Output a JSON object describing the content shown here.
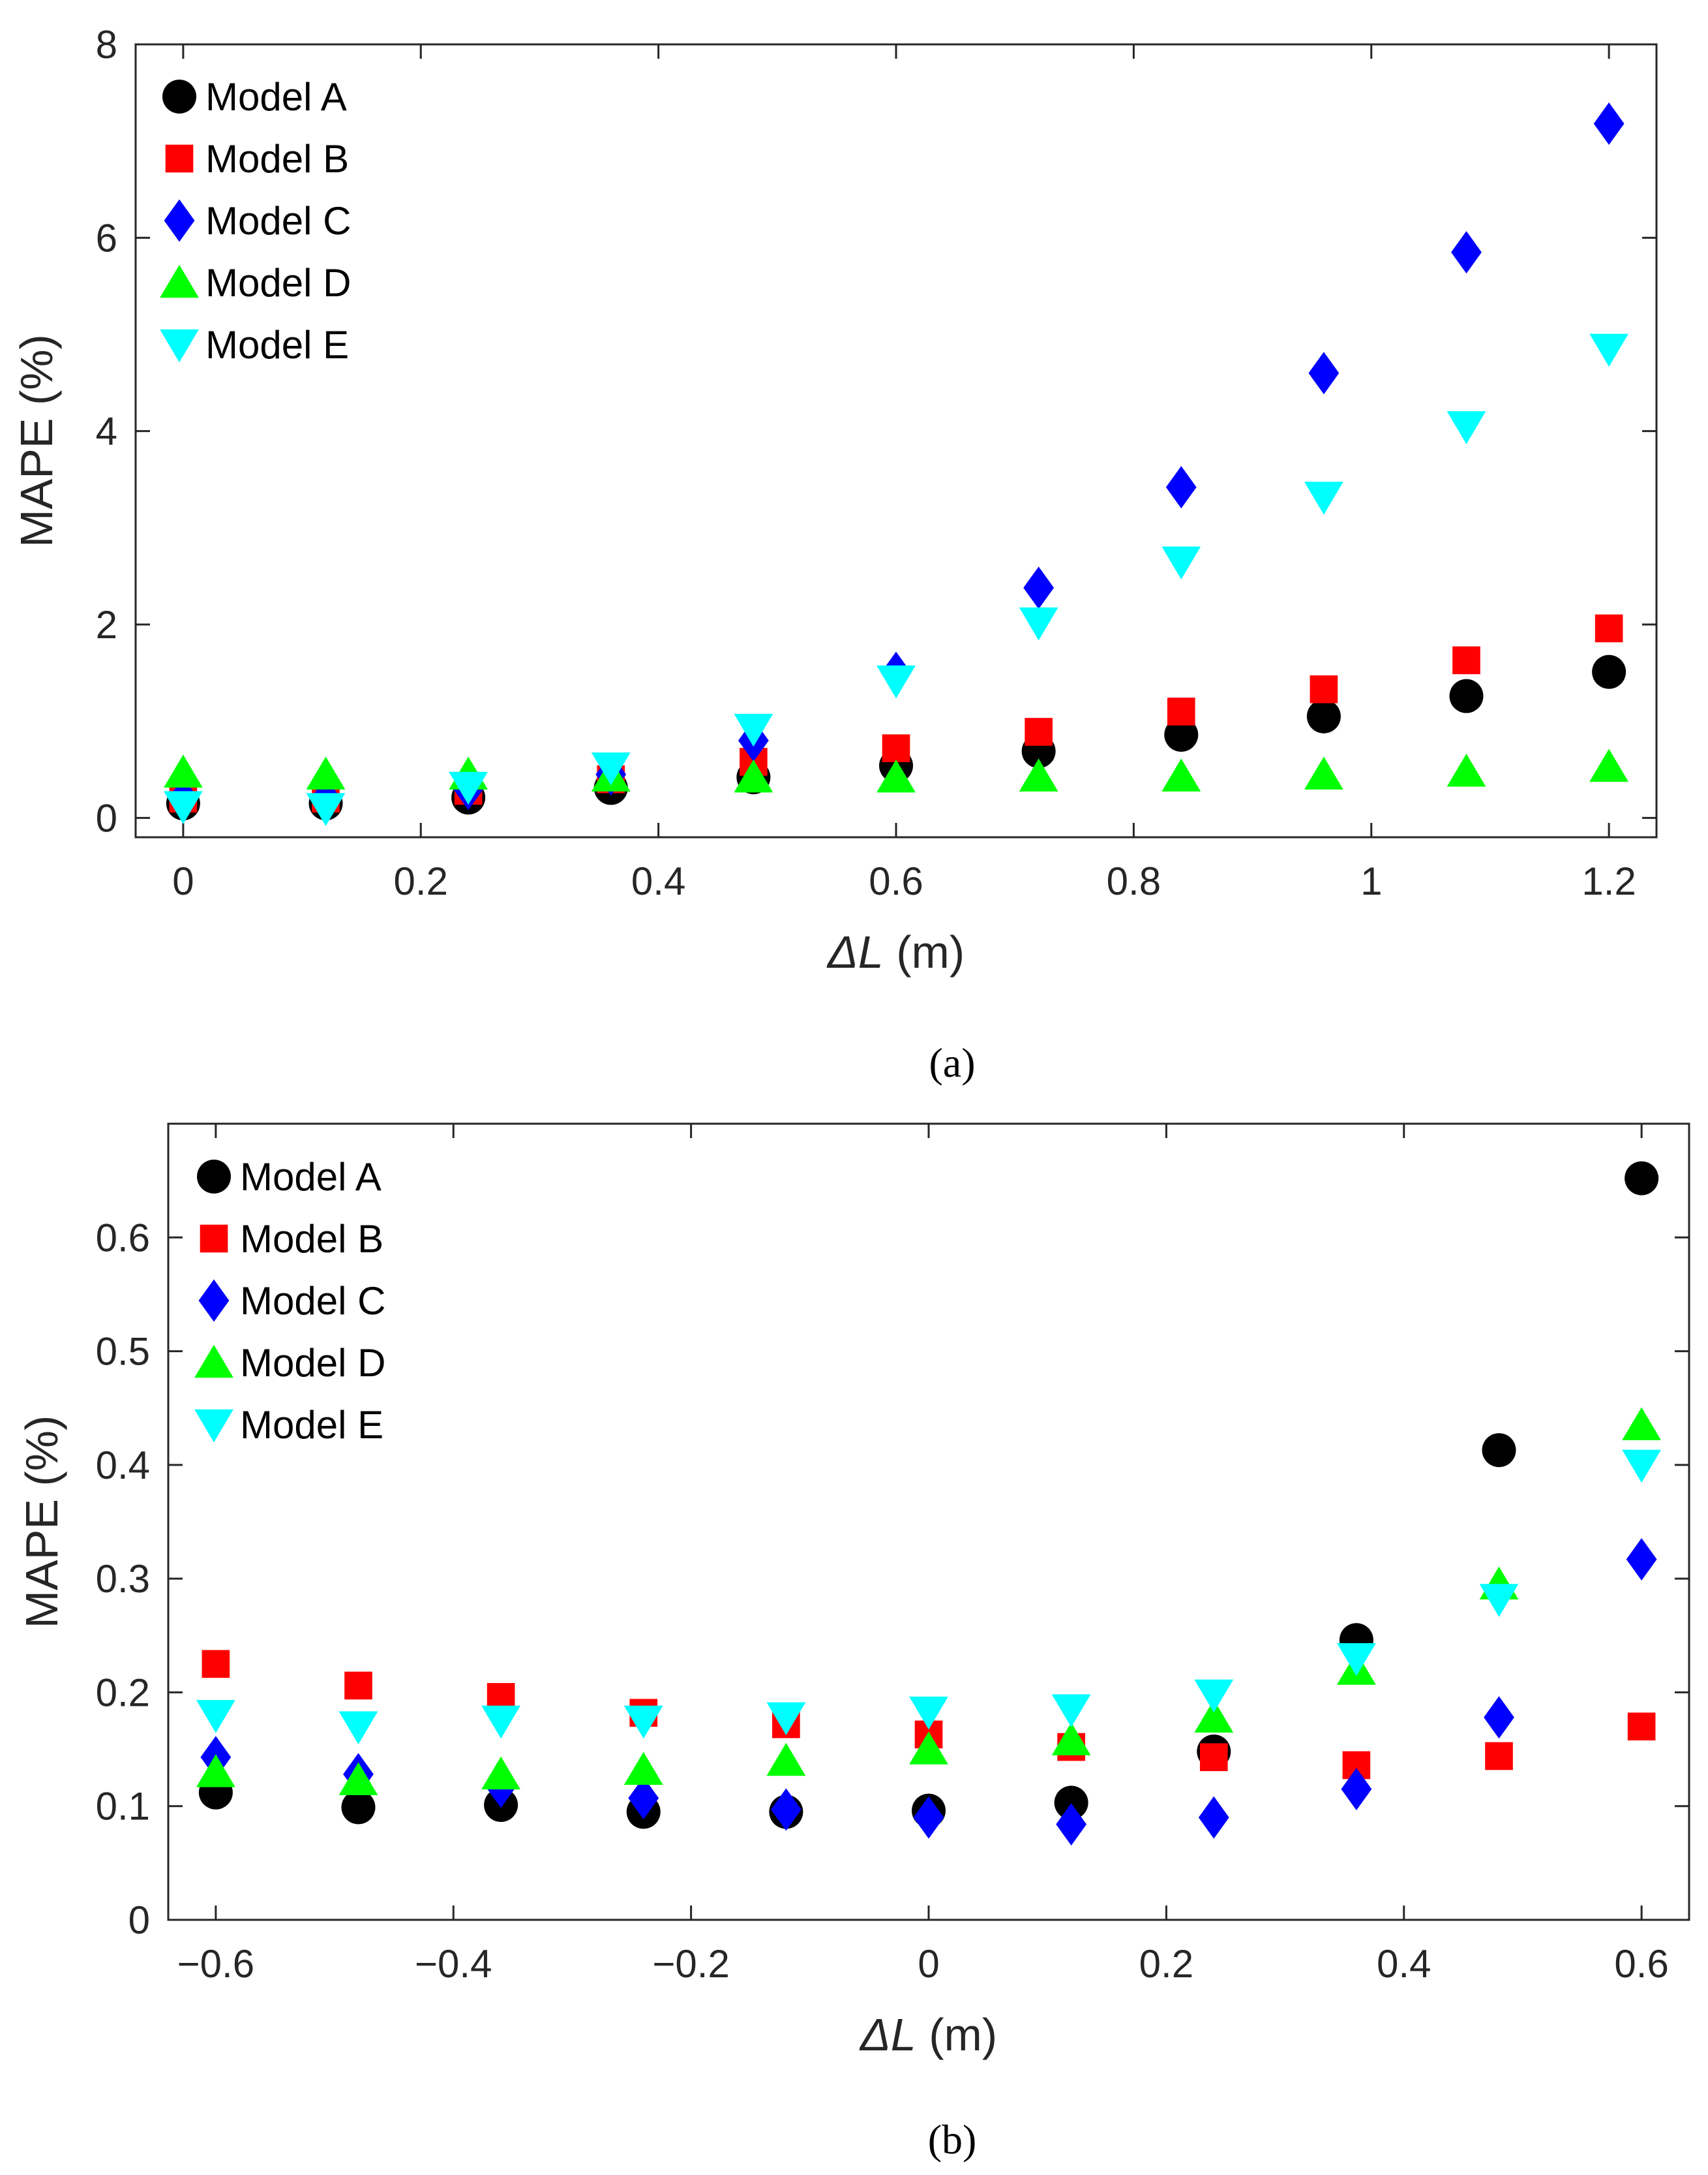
{
  "chart_data": [
    {
      "type": "scatter",
      "caption": "(a)",
      "xlabel_symbol": "ΔL",
      "xlabel_unit": " (m)",
      "ylabel": "MAPE (%)",
      "xlim": [
        -0.04,
        1.24
      ],
      "ylim": [
        -0.2,
        8.0
      ],
      "xticks": [
        0,
        0.2,
        0.4,
        0.6,
        0.8,
        1,
        1.2
      ],
      "xtick_labels": [
        "0",
        "0.2",
        "0.4",
        "0.6",
        "0.8",
        "1",
        "1.2"
      ],
      "yticks": [
        0,
        2,
        4,
        6,
        8
      ],
      "ytick_labels": [
        "0",
        "2",
        "4",
        "6",
        "8"
      ],
      "grid": false,
      "legend_position": "top-left",
      "x": [
        0,
        0.12,
        0.24,
        0.36,
        0.48,
        0.6,
        0.72,
        0.84,
        0.96,
        1.08,
        1.2
      ],
      "series": [
        {
          "name": "Model A",
          "marker": "circle",
          "color": "#000000",
          "values": [
            0.15,
            0.15,
            0.21,
            0.31,
            0.42,
            0.54,
            0.69,
            0.86,
            1.05,
            1.26,
            1.51
          ]
        },
        {
          "name": "Model B",
          "marker": "square",
          "color": "#ff0000",
          "values": [
            0.2,
            0.2,
            0.28,
            0.4,
            0.58,
            0.72,
            0.89,
            1.1,
            1.33,
            1.63,
            1.96
          ]
        },
        {
          "name": "Model C",
          "marker": "diamond",
          "color": "#0000ff",
          "values": [
            0.2,
            0.2,
            0.3,
            0.45,
            0.8,
            1.5,
            2.38,
            3.42,
            4.6,
            5.85,
            7.18
          ]
        },
        {
          "name": "Model D",
          "marker": "triangle-up",
          "color": "#00ff00",
          "values": [
            0.47,
            0.45,
            0.45,
            0.43,
            0.42,
            0.42,
            0.43,
            0.43,
            0.45,
            0.48,
            0.53
          ]
        },
        {
          "name": "Model E",
          "marker": "triangle-down",
          "color": "#00ffff",
          "values": [
            0.12,
            0.1,
            0.32,
            0.52,
            0.92,
            1.42,
            2.02,
            2.65,
            3.32,
            4.05,
            4.85
          ]
        }
      ]
    },
    {
      "type": "scatter",
      "caption": "(b)",
      "xlabel_symbol": "ΔL",
      "xlabel_unit": " (m)",
      "ylabel": "MAPE (%)",
      "xlim": [
        -0.64,
        0.64
      ],
      "ylim": [
        0,
        0.7
      ],
      "xticks": [
        -0.6,
        -0.4,
        -0.2,
        0,
        0.2,
        0.4,
        0.6
      ],
      "xtick_labels": [
        "−0.6",
        "−0.4",
        "−0.2",
        "0",
        "0.2",
        "0.4",
        "0.6"
      ],
      "yticks": [
        0,
        0.1,
        0.2,
        0.3,
        0.4,
        0.5,
        0.6
      ],
      "ytick_labels": [
        "0",
        "0.1",
        "0.2",
        "0.3",
        "0.4",
        "0.5",
        "0.6"
      ],
      "grid": false,
      "legend_position": "top-left",
      "x": [
        -0.6,
        -0.48,
        -0.36,
        -0.24,
        -0.12,
        0,
        0.12,
        0.24,
        0.36,
        0.48,
        0.6
      ],
      "series": [
        {
          "name": "Model A",
          "marker": "circle",
          "color": "#000000",
          "values": [
            0.112,
            0.099,
            0.101,
            0.095,
            0.095,
            0.096,
            0.103,
            0.148,
            0.246,
            0.413,
            0.652
          ]
        },
        {
          "name": "Model B",
          "marker": "square",
          "color": "#ff0000",
          "values": [
            0.225,
            0.206,
            0.196,
            0.182,
            0.172,
            0.163,
            0.152,
            0.143,
            0.136,
            0.144,
            0.17
          ]
        },
        {
          "name": "Model C",
          "marker": "diamond",
          "color": "#0000ff",
          "values": [
            0.143,
            0.128,
            0.117,
            0.107,
            0.097,
            0.09,
            0.084,
            0.09,
            0.115,
            0.178,
            0.317
          ]
        },
        {
          "name": "Model D",
          "marker": "triangle-up",
          "color": "#00ff00",
          "values": [
            0.13,
            0.123,
            0.128,
            0.132,
            0.14,
            0.15,
            0.158,
            0.178,
            0.22,
            0.295,
            0.435
          ]
        },
        {
          "name": "Model E",
          "marker": "triangle-down",
          "color": "#00ffff",
          "values": [
            0.18,
            0.17,
            0.175,
            0.175,
            0.178,
            0.183,
            0.185,
            0.198,
            0.23,
            0.282,
            0.4
          ]
        }
      ]
    }
  ]
}
